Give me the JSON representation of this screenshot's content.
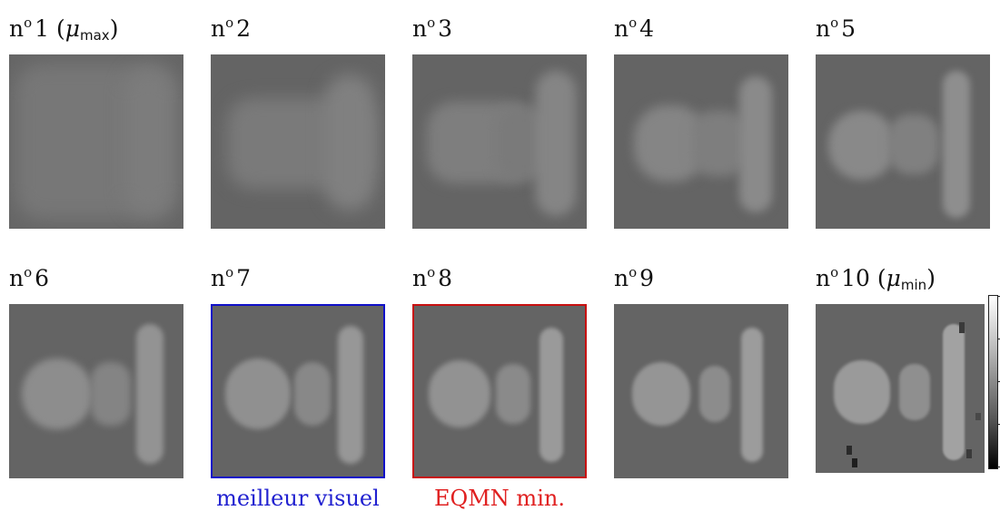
{
  "panels": [
    {
      "prefix": "n",
      "sup": "o",
      "number": "1",
      "extra_pre": " (",
      "mu": "μ",
      "sub": "max",
      "extra_post": ")",
      "caption": ""
    },
    {
      "prefix": "n",
      "sup": "o",
      "number": "2",
      "extra_pre": "",
      "mu": "",
      "sub": "",
      "extra_post": "",
      "caption": ""
    },
    {
      "prefix": "n",
      "sup": "o",
      "number": "3",
      "extra_pre": "",
      "mu": "",
      "sub": "",
      "extra_post": "",
      "caption": ""
    },
    {
      "prefix": "n",
      "sup": "o",
      "number": "4",
      "extra_pre": "",
      "mu": "",
      "sub": "",
      "extra_post": "",
      "caption": ""
    },
    {
      "prefix": "n",
      "sup": "o",
      "number": "5",
      "extra_pre": "",
      "mu": "",
      "sub": "",
      "extra_post": "",
      "caption": ""
    },
    {
      "prefix": "n",
      "sup": "o",
      "number": "6",
      "extra_pre": "",
      "mu": "",
      "sub": "",
      "extra_post": "",
      "caption": ""
    },
    {
      "prefix": "n",
      "sup": "o",
      "number": "7",
      "extra_pre": "",
      "mu": "",
      "sub": "",
      "extra_post": "",
      "caption": "meilleur visuel"
    },
    {
      "prefix": "n",
      "sup": "o",
      "number": "8",
      "extra_pre": "",
      "mu": "",
      "sub": "",
      "extra_post": "",
      "caption": "EQMN min."
    },
    {
      "prefix": "n",
      "sup": "o",
      "number": "9",
      "extra_pre": "",
      "mu": "",
      "sub": "",
      "extra_post": "",
      "caption": ""
    },
    {
      "prefix": "n",
      "sup": "o",
      "number": "10",
      "extra_pre": " (",
      "mu": "μ",
      "sub": "min",
      "extra_post": ")",
      "caption": ""
    }
  ],
  "colors": {
    "background_gray": "#646464",
    "best_visual_frame": "#1010c8",
    "min_error_frame": "#c81010"
  }
}
